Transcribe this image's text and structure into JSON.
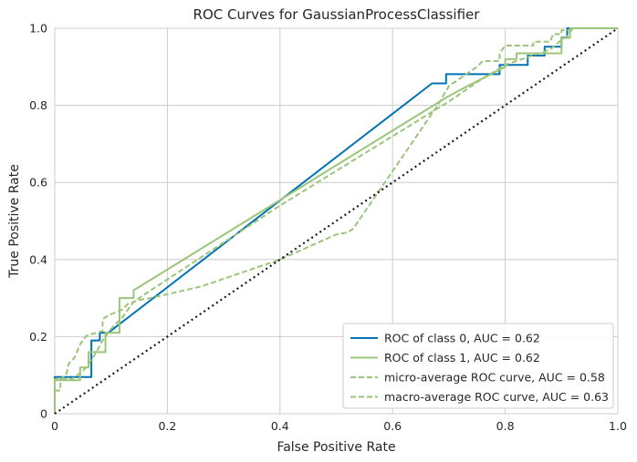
{
  "chart_data": {
    "type": "line",
    "title": "ROC Curves for GaussianProcessClassifier",
    "xlabel": "False Positive Rate",
    "ylabel": "True Positive Rate",
    "xlim": [
      0,
      1
    ],
    "ylim": [
      0,
      1
    ],
    "x_ticks": [
      "0",
      "0.2",
      "0.4",
      "0.6",
      "0.8",
      "1.0"
    ],
    "y_ticks": [
      "0",
      "0.2",
      "0.4",
      "0.6",
      "0.8",
      "1.0"
    ],
    "grid": true,
    "legend_position": "lower-right",
    "series": [
      {
        "name": "ROC of class 0, AUC = 0.62",
        "color": "#0072B2",
        "style": "solid",
        "points": [
          [
            0,
            0
          ],
          [
            0,
            0.095
          ],
          [
            0.065,
            0.095
          ],
          [
            0.065,
            0.19
          ],
          [
            0.08,
            0.19
          ],
          [
            0.08,
            0.21
          ],
          [
            0.095,
            0.21
          ],
          [
            0.67,
            0.857
          ],
          [
            0.695,
            0.857
          ],
          [
            0.695,
            0.881
          ],
          [
            0.79,
            0.881
          ],
          [
            0.79,
            0.905
          ],
          [
            0.84,
            0.905
          ],
          [
            0.84,
            0.929
          ],
          [
            0.87,
            0.929
          ],
          [
            0.87,
            0.952
          ],
          [
            0.9,
            0.952
          ],
          [
            0.9,
            0.976
          ],
          [
            0.91,
            0.976
          ],
          [
            0.91,
            1.0
          ],
          [
            1.0,
            1.0
          ]
        ]
      },
      {
        "name": "ROC of class 1, AUC = 0.62",
        "color": "#9BC57A",
        "style": "solid",
        "points": [
          [
            0,
            0
          ],
          [
            0,
            0.087
          ],
          [
            0.045,
            0.087
          ],
          [
            0.045,
            0.12
          ],
          [
            0.06,
            0.12
          ],
          [
            0.06,
            0.16
          ],
          [
            0.09,
            0.16
          ],
          [
            0.09,
            0.21
          ],
          [
            0.115,
            0.21
          ],
          [
            0.115,
            0.3
          ],
          [
            0.14,
            0.3
          ],
          [
            0.14,
            0.32
          ],
          [
            0.695,
            0.82
          ],
          [
            0.72,
            0.84
          ],
          [
            0.8,
            0.9
          ],
          [
            0.8,
            0.92
          ],
          [
            0.82,
            0.92
          ],
          [
            0.82,
            0.935
          ],
          [
            0.9,
            0.935
          ],
          [
            0.9,
            0.975
          ],
          [
            0.915,
            0.975
          ],
          [
            0.915,
            1.0
          ],
          [
            1.0,
            1.0
          ]
        ]
      },
      {
        "name": "micro-average ROC curve, AUC = 0.58",
        "color": "#9BC57A",
        "style": "dashed",
        "points": [
          [
            0,
            0.06
          ],
          [
            0.01,
            0.06
          ],
          [
            0.01,
            0.09
          ],
          [
            0.02,
            0.1
          ],
          [
            0.025,
            0.13
          ],
          [
            0.035,
            0.145
          ],
          [
            0.045,
            0.18
          ],
          [
            0.055,
            0.2
          ],
          [
            0.06,
            0.205
          ],
          [
            0.075,
            0.21
          ],
          [
            0.085,
            0.215
          ],
          [
            0.085,
            0.245
          ],
          [
            0.095,
            0.255
          ],
          [
            0.12,
            0.27
          ],
          [
            0.13,
            0.285
          ],
          [
            0.15,
            0.295
          ],
          [
            0.17,
            0.3
          ],
          [
            0.26,
            0.33
          ],
          [
            0.4,
            0.4
          ],
          [
            0.5,
            0.465
          ],
          [
            0.52,
            0.47
          ],
          [
            0.53,
            0.48
          ],
          [
            0.68,
            0.8
          ],
          [
            0.7,
            0.85
          ],
          [
            0.75,
            0.9
          ],
          [
            0.76,
            0.915
          ],
          [
            0.79,
            0.915
          ],
          [
            0.79,
            0.935
          ],
          [
            0.8,
            0.955
          ],
          [
            0.85,
            0.955
          ],
          [
            0.85,
            0.965
          ],
          [
            0.88,
            0.965
          ],
          [
            0.885,
            0.985
          ],
          [
            0.9,
            0.985
          ],
          [
            0.9,
            0.995
          ],
          [
            0.92,
            0.995
          ],
          [
            0.92,
            1.0
          ],
          [
            1.0,
            1.0
          ]
        ]
      },
      {
        "name": "macro-average ROC curve, AUC = 0.63",
        "color": "#9BC57A",
        "style": "dashed",
        "points": [
          [
            0,
            0
          ],
          [
            0,
            0.09
          ],
          [
            0.03,
            0.09
          ],
          [
            0.05,
            0.11
          ],
          [
            0.07,
            0.15
          ],
          [
            0.085,
            0.19
          ],
          [
            0.1,
            0.22
          ],
          [
            0.12,
            0.25
          ],
          [
            0.14,
            0.29
          ],
          [
            0.16,
            0.31
          ],
          [
            0.4,
            0.54
          ],
          [
            0.6,
            0.72
          ],
          [
            0.7,
            0.81
          ],
          [
            0.75,
            0.86
          ],
          [
            0.8,
            0.905
          ],
          [
            0.84,
            0.925
          ],
          [
            0.88,
            0.945
          ],
          [
            0.9,
            0.97
          ],
          [
            0.91,
            0.98
          ],
          [
            0.92,
            1.0
          ],
          [
            1.0,
            1.0
          ]
        ]
      },
      {
        "name": "",
        "color": "#1a1a1a",
        "style": "dotted",
        "points": [
          [
            0,
            0
          ],
          [
            1,
            1
          ]
        ]
      }
    ]
  }
}
